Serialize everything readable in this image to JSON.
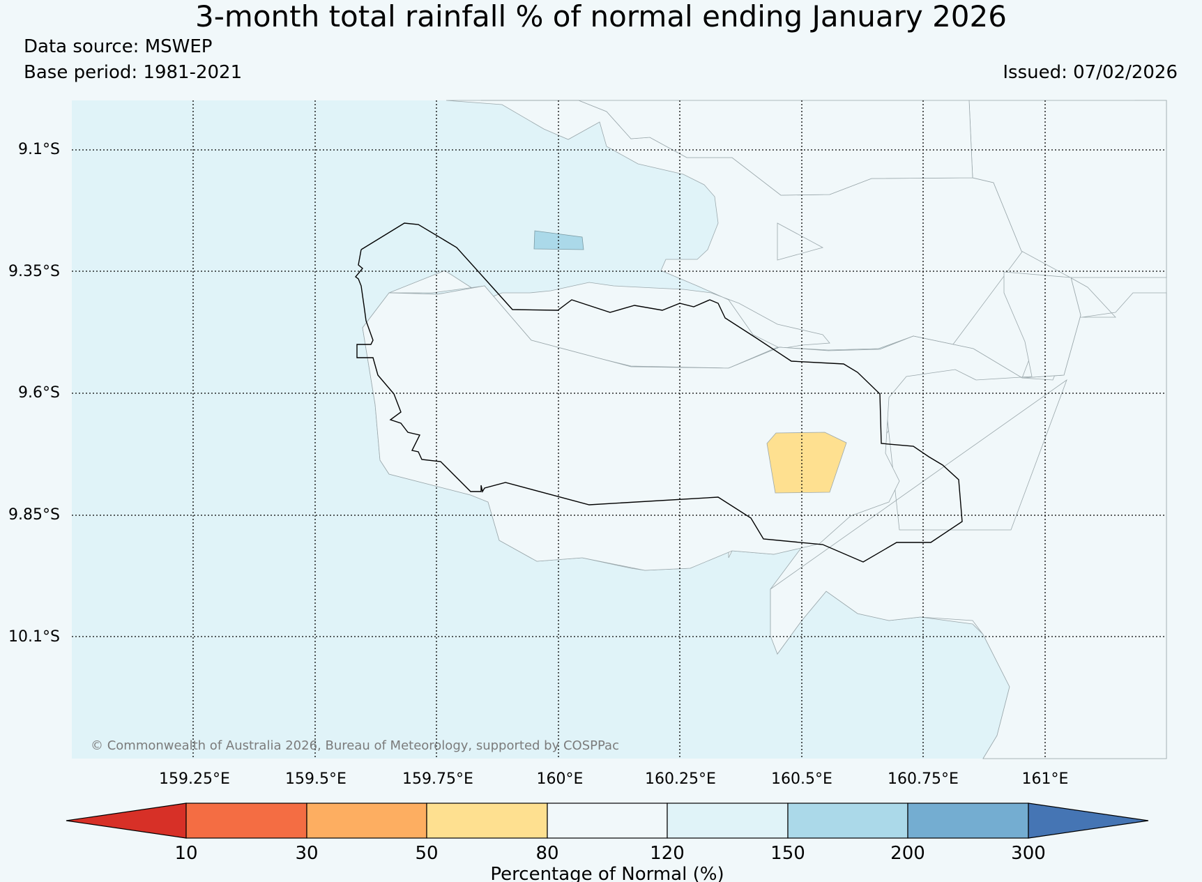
{
  "header": {
    "title": "3-month total rainfall % of normal ending January 2026",
    "data_source": "Data source: MSWEP",
    "base_period": "Base period: 1981-2021",
    "issued": "Issued: 07/02/2026"
  },
  "map": {
    "lat_labels": [
      "9.1°S",
      "9.35°S",
      "9.6°S",
      "9.85°S",
      "10.1°S"
    ],
    "lon_labels": [
      "159.25°E",
      "159.5°E",
      "159.75°E",
      "160°E",
      "160.25°E",
      "160.5°E",
      "160.75°E",
      "161°E"
    ],
    "copyright": "© Commonwealth of Australia 2026, Bureau of Meteorology, supported by COSPPac",
    "background_class_color": "#e0f3f8",
    "land_class_color": "#f1f8fa"
  },
  "legend": {
    "label": "Percentage of Normal (%)",
    "ticks": [
      "10",
      "30",
      "50",
      "80",
      "120",
      "150",
      "200",
      "300"
    ],
    "colors": [
      "#d73027",
      "#f46d43",
      "#fdae61",
      "#fee090",
      "#f1f8fa",
      "#e0f3f8",
      "#abd9e9",
      "#74add1",
      "#4575b4"
    ]
  }
}
